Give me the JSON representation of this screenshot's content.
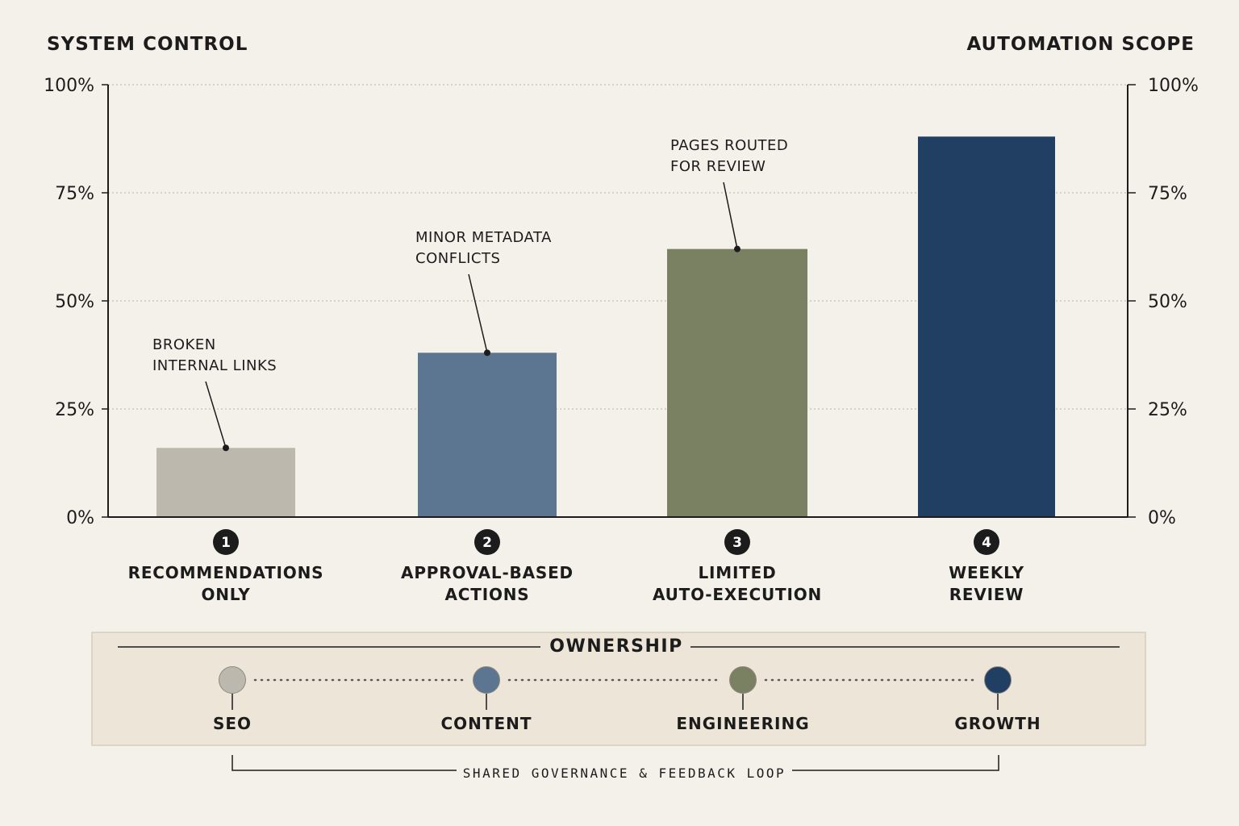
{
  "chart_data": {
    "type": "bar",
    "ylabel_left": "SYSTEM CONTROL",
    "ylabel_right": "AUTOMATION SCOPE",
    "ylim": [
      0,
      100
    ],
    "yticks": [
      "0%",
      "25%",
      "50%",
      "75%",
      "100%"
    ],
    "ytick_values": [
      0,
      25,
      50,
      75,
      100
    ],
    "grid": "horizontal-dotted",
    "categories": [
      {
        "step": "1",
        "lines": [
          "RECOMMENDATIONS",
          "ONLY"
        ]
      },
      {
        "step": "2",
        "lines": [
          "APPROVAL-BASED",
          "ACTIONS"
        ]
      },
      {
        "step": "3",
        "lines": [
          "LIMITED",
          "AUTO-EXECUTION"
        ]
      },
      {
        "step": "4",
        "lines": [
          "WEEKLY",
          "REVIEW"
        ]
      }
    ],
    "values": [
      16,
      38,
      62,
      88
    ],
    "colors": [
      "#bdb8ae",
      "#5c7590",
      "#7a8163",
      "#213f63"
    ],
    "annotations": [
      {
        "bar": 0,
        "lines": [
          "BROKEN",
          "INTERNAL LINKS"
        ]
      },
      {
        "bar": 1,
        "lines": [
          "MINOR METADATA",
          "CONFLICTS"
        ]
      },
      {
        "bar": 2,
        "lines": [
          "PAGES ROUTED",
          "FOR REVIEW"
        ]
      }
    ]
  },
  "ownership": {
    "title": "OWNERSHIP",
    "teams": [
      {
        "label": "SEO",
        "color": "#bdb8ae"
      },
      {
        "label": "CONTENT",
        "color": "#5c7590"
      },
      {
        "label": "ENGINEERING",
        "color": "#7a8163"
      },
      {
        "label": "GROWTH",
        "color": "#213f63"
      }
    ],
    "loop_label": "SHARED GOVERNANCE & FEEDBACK LOOP"
  }
}
